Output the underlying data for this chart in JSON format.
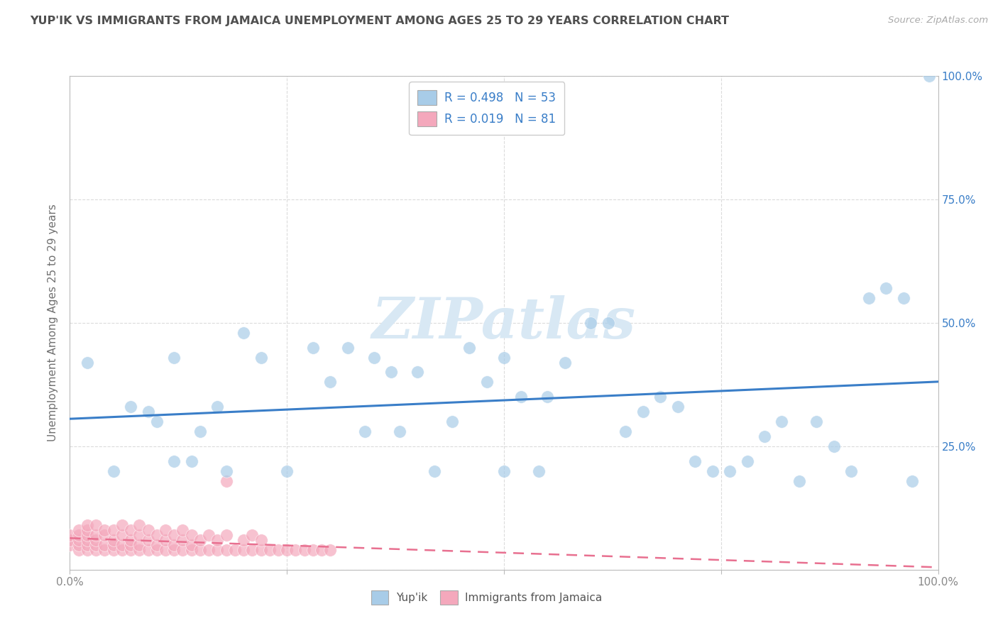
{
  "title": "YUP'IK VS IMMIGRANTS FROM JAMAICA UNEMPLOYMENT AMONG AGES 25 TO 29 YEARS CORRELATION CHART",
  "source": "Source: ZipAtlas.com",
  "ylabel": "Unemployment Among Ages 25 to 29 years",
  "xlim": [
    0,
    1.0
  ],
  "ylim": [
    0,
    1.0
  ],
  "xticks": [
    0.0,
    0.25,
    0.5,
    0.75,
    1.0
  ],
  "xticklabels": [
    "0.0%",
    "",
    "",
    "",
    "100.0%"
  ],
  "yticks": [
    0.0,
    0.25,
    0.5,
    0.75,
    1.0
  ],
  "right_yticklabels": [
    "",
    "25.0%",
    "50.0%",
    "75.0%",
    "100.0%"
  ],
  "yup_ik_R": 0.498,
  "yup_ik_N": 53,
  "jamaica_R": 0.019,
  "jamaica_N": 81,
  "blue_color": "#A8CCE8",
  "pink_color": "#F4A8BC",
  "blue_line_color": "#3A7EC8",
  "pink_line_color": "#E87090",
  "watermark_color": "#D8E8F4",
  "title_color": "#505050",
  "axis_label_color": "#707070",
  "tick_color": "#888888",
  "grid_color": "#D8D8D8",
  "yup_ik_x": [
    0.02,
    0.05,
    0.07,
    0.09,
    0.1,
    0.12,
    0.12,
    0.14,
    0.15,
    0.17,
    0.18,
    0.2,
    0.22,
    0.25,
    0.28,
    0.3,
    0.32,
    0.35,
    0.37,
    0.4,
    0.42,
    0.44,
    0.46,
    0.48,
    0.5,
    0.52,
    0.55,
    0.57,
    0.6,
    0.62,
    0.64,
    0.66,
    0.68,
    0.7,
    0.72,
    0.74,
    0.76,
    0.78,
    0.8,
    0.82,
    0.84,
    0.86,
    0.88,
    0.9,
    0.92,
    0.94,
    0.96,
    0.97,
    0.34,
    0.38,
    0.5,
    0.54,
    0.99
  ],
  "yup_ik_y": [
    0.42,
    0.2,
    0.33,
    0.32,
    0.3,
    0.43,
    0.22,
    0.22,
    0.28,
    0.33,
    0.2,
    0.48,
    0.43,
    0.2,
    0.45,
    0.38,
    0.45,
    0.43,
    0.4,
    0.4,
    0.2,
    0.3,
    0.45,
    0.38,
    0.43,
    0.35,
    0.35,
    0.42,
    0.5,
    0.5,
    0.28,
    0.32,
    0.35,
    0.33,
    0.22,
    0.2,
    0.2,
    0.22,
    0.27,
    0.3,
    0.18,
    0.3,
    0.25,
    0.2,
    0.55,
    0.57,
    0.55,
    0.18,
    0.28,
    0.28,
    0.2,
    0.2,
    1.0
  ],
  "jamaica_x": [
    0.0,
    0.0,
    0.0,
    0.01,
    0.01,
    0.01,
    0.01,
    0.01,
    0.02,
    0.02,
    0.02,
    0.02,
    0.02,
    0.02,
    0.03,
    0.03,
    0.03,
    0.03,
    0.03,
    0.04,
    0.04,
    0.04,
    0.04,
    0.05,
    0.05,
    0.05,
    0.05,
    0.06,
    0.06,
    0.06,
    0.06,
    0.07,
    0.07,
    0.07,
    0.07,
    0.08,
    0.08,
    0.08,
    0.08,
    0.09,
    0.09,
    0.09,
    0.1,
    0.1,
    0.1,
    0.11,
    0.11,
    0.11,
    0.12,
    0.12,
    0.12,
    0.13,
    0.13,
    0.13,
    0.14,
    0.14,
    0.14,
    0.15,
    0.15,
    0.16,
    0.16,
    0.17,
    0.17,
    0.18,
    0.18,
    0.19,
    0.2,
    0.2,
    0.21,
    0.21,
    0.22,
    0.22,
    0.23,
    0.24,
    0.25,
    0.26,
    0.27,
    0.28,
    0.29,
    0.3,
    0.18
  ],
  "jamaica_y": [
    0.05,
    0.06,
    0.07,
    0.04,
    0.05,
    0.06,
    0.07,
    0.08,
    0.04,
    0.05,
    0.06,
    0.07,
    0.08,
    0.09,
    0.04,
    0.05,
    0.06,
    0.07,
    0.09,
    0.04,
    0.05,
    0.07,
    0.08,
    0.04,
    0.05,
    0.06,
    0.08,
    0.04,
    0.05,
    0.07,
    0.09,
    0.04,
    0.05,
    0.06,
    0.08,
    0.04,
    0.05,
    0.07,
    0.09,
    0.04,
    0.06,
    0.08,
    0.04,
    0.05,
    0.07,
    0.04,
    0.06,
    0.08,
    0.04,
    0.05,
    0.07,
    0.04,
    0.06,
    0.08,
    0.04,
    0.05,
    0.07,
    0.04,
    0.06,
    0.04,
    0.07,
    0.04,
    0.06,
    0.04,
    0.07,
    0.04,
    0.04,
    0.06,
    0.04,
    0.07,
    0.04,
    0.06,
    0.04,
    0.04,
    0.04,
    0.04,
    0.04,
    0.04,
    0.04,
    0.04,
    0.18
  ]
}
